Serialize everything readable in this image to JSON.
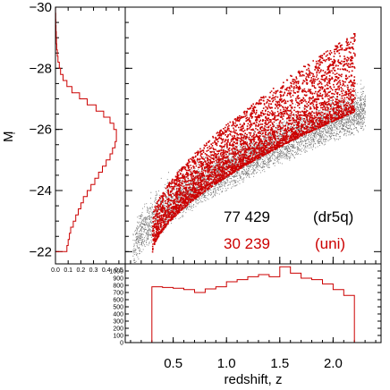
{
  "chart_data": {
    "type": "scatter",
    "colors": {
      "dr5q": "#000000",
      "uni": "#cc0000",
      "hist": "#cc0000"
    },
    "main": {
      "xlim": [
        0.05,
        2.45
      ],
      "ylim": [
        -21.6,
        -30.0
      ],
      "xticks": [
        "0.5",
        "1.0",
        "1.5",
        "2.0"
      ],
      "xtick_values": [
        0.5,
        1.0,
        1.5,
        2.0
      ],
      "yticks": [
        "−30",
        "−28",
        "−26",
        "−24",
        "−22"
      ],
      "ytick_values": [
        -30,
        -28,
        -26,
        -24,
        -22
      ],
      "xlabel": "redshift, z",
      "ylabel": "M",
      "ylabel_sub": "i",
      "legend": [
        {
          "count": "77 429",
          "tag": "(dr5q)",
          "color": "#000000"
        },
        {
          "count": "30 239",
          "tag": "(uni)",
          "color": "#cc0000"
        }
      ],
      "series": [
        {
          "name": "dr5q",
          "n": 77429,
          "magnitude_limit_low_z": -22.0,
          "magnitude_limit_high_z": -26.8,
          "max_bright": -28.4
        },
        {
          "name": "uni",
          "n": 30239,
          "magnitude_limit_low_z": -22.0,
          "magnitude_limit_high_z": -26.6,
          "max_bright": -29.2,
          "z_min": 0.3,
          "z_max": 2.2
        }
      ]
    },
    "redshift_hist": {
      "ylim": [
        0,
        1100
      ],
      "yticks": [
        "0",
        "100",
        "200",
        "300",
        "400",
        "500",
        "600",
        "700",
        "800",
        "900",
        "1000"
      ],
      "ytick_values": [
        0,
        100,
        200,
        300,
        400,
        500,
        600,
        700,
        800,
        900,
        1000
      ],
      "bin_edges": [
        0.3,
        0.4,
        0.5,
        0.6,
        0.7,
        0.8,
        0.9,
        1.0,
        1.1,
        1.2,
        1.3,
        1.4,
        1.5,
        1.6,
        1.7,
        1.8,
        1.9,
        2.0,
        2.1,
        2.2
      ],
      "counts": [
        780,
        770,
        760,
        740,
        700,
        750,
        780,
        850,
        880,
        920,
        950,
        920,
        1060,
        970,
        900,
        880,
        820,
        740,
        660
      ]
    },
    "magnitude_hist": {
      "xlim": [
        0,
        0.55
      ],
      "xticks": [
        "0.0",
        "0.1",
        "0.2",
        "0.3",
        "0.4",
        "0.5"
      ],
      "xtick_values": [
        0.0,
        0.1,
        0.2,
        0.3,
        0.4,
        0.5
      ],
      "bin_edges": [
        -22.0,
        -22.2,
        -22.4,
        -22.6,
        -22.8,
        -23.0,
        -23.2,
        -23.4,
        -23.6,
        -23.8,
        -24.0,
        -24.2,
        -24.4,
        -24.6,
        -24.8,
        -25.0,
        -25.2,
        -25.4,
        -25.6,
        -25.8,
        -26.0,
        -26.2,
        -26.4,
        -26.6,
        -26.8,
        -27.0,
        -27.2,
        -27.4,
        -27.6,
        -27.8,
        -28.0,
        -28.2,
        -28.4,
        -28.6,
        -28.8,
        -29.0,
        -29.2,
        -29.4,
        -29.6,
        -29.8,
        -30.0
      ],
      "fractions": [
        0.09,
        0.1,
        0.11,
        0.12,
        0.14,
        0.16,
        0.18,
        0.2,
        0.22,
        0.25,
        0.28,
        0.31,
        0.34,
        0.37,
        0.4,
        0.43,
        0.45,
        0.47,
        0.48,
        0.48,
        0.46,
        0.43,
        0.38,
        0.32,
        0.25,
        0.19,
        0.13,
        0.09,
        0.06,
        0.04,
        0.03,
        0.02,
        0.015,
        0.01,
        0.008,
        0.006,
        0.004,
        0.003,
        0.002,
        0.001
      ]
    }
  }
}
